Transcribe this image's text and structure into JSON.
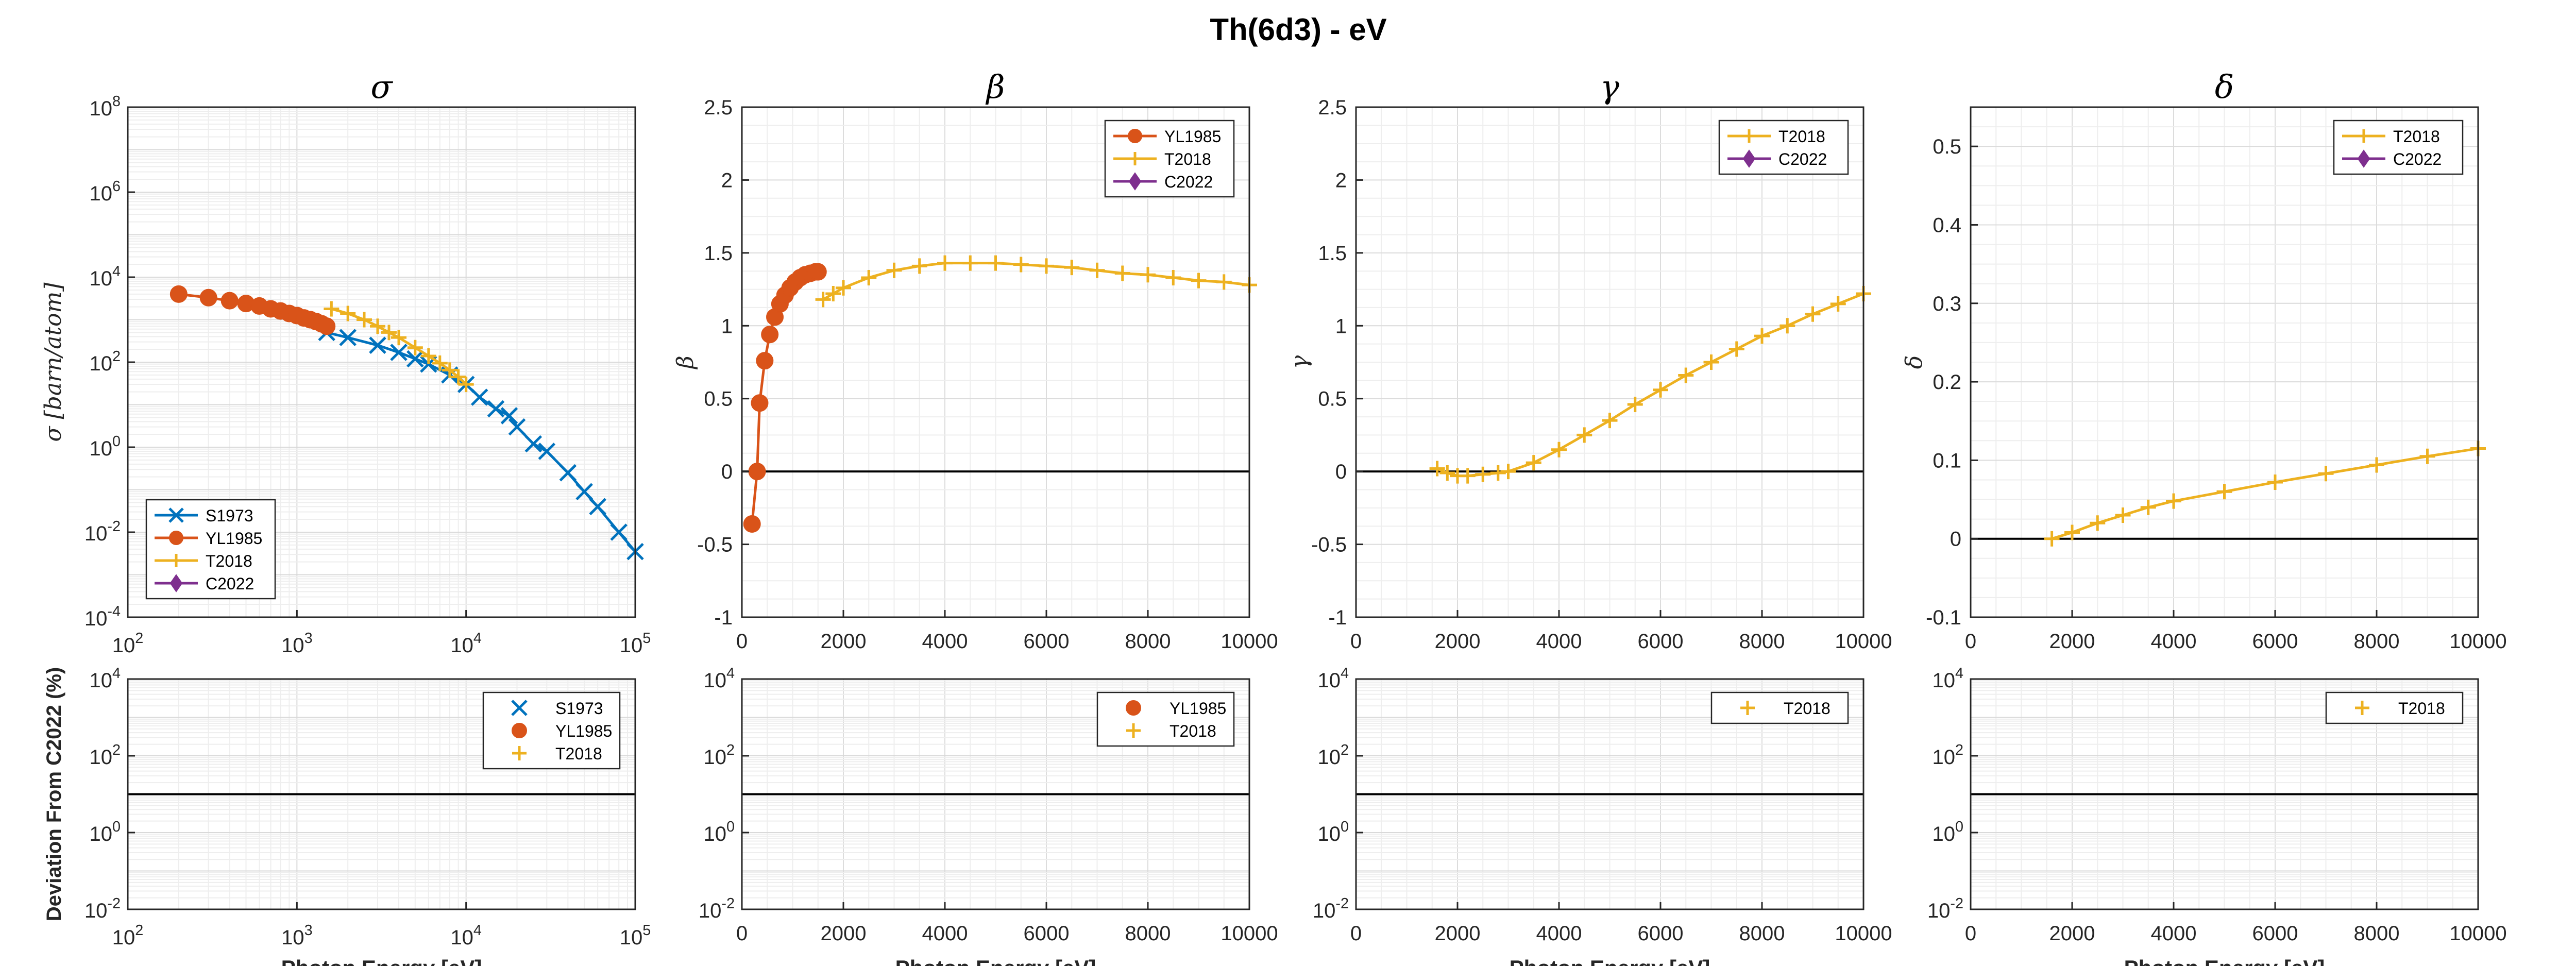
{
  "figure": {
    "title": "Th(6d3) -  eV",
    "xlabel": "Photon Energy [eV]",
    "dev_ylabel": "Deviation From C2022 (%)"
  },
  "colors": {
    "S1973": "#0072BD",
    "YL1985": "#D95319",
    "T2018": "#EDB120",
    "C2022": "#7E2F8E",
    "zero": "#000000",
    "grid": "#e6e6e6",
    "frame": "#262626"
  },
  "chart_data": [
    {
      "id": "sigma",
      "type": "line",
      "title": "σ",
      "ylabel": "σ [barn/atom]",
      "xscale": "log",
      "yscale": "log",
      "xlim": [
        100,
        100000
      ],
      "ylim": [
        0.0001,
        100000000
      ],
      "xticks": [
        100,
        1000,
        10000,
        100000
      ],
      "xticklabels": [
        [
          "10",
          "2"
        ],
        [
          "10",
          "3"
        ],
        [
          "10",
          "4"
        ],
        [
          "10",
          "5"
        ]
      ],
      "yticks": [
        0.0001,
        0.01,
        1,
        100,
        10000,
        1000000,
        100000000
      ],
      "yticklabels": [
        [
          "10",
          "-4"
        ],
        [
          "10",
          "-2"
        ],
        [
          "10",
          "0"
        ],
        [
          "10",
          "2"
        ],
        [
          "10",
          "4"
        ],
        [
          "10",
          "6"
        ],
        [
          "10",
          "8"
        ]
      ],
      "grid": true,
      "legend": "bottom-left",
      "legend_entries": [
        "S1973",
        "YL1985",
        "T2018",
        "C2022"
      ],
      "series": [
        {
          "name": "S1973",
          "marker": "x",
          "x": [
            1500,
            2000,
            3000,
            4000,
            5000,
            6000,
            8000,
            10000,
            12000,
            15000,
            18000,
            20000,
            25000,
            30000,
            40000,
            50000,
            60000,
            80000,
            100000
          ],
          "y": [
            500,
            380,
            250,
            170,
            120,
            90,
            50,
            30,
            15,
            8,
            5.5,
            3,
            1.2,
            0.8,
            0.25,
            0.09,
            0.04,
            0.01,
            0.0035
          ]
        },
        {
          "name": "YL1985",
          "marker": "o",
          "x": [
            200,
            300,
            400,
            500,
            600,
            700,
            800,
            900,
            1000,
            1100,
            1200,
            1300,
            1400,
            1500
          ],
          "y": [
            4000,
            3300,
            2800,
            2400,
            2100,
            1800,
            1600,
            1400,
            1250,
            1100,
            1000,
            900,
            800,
            700
          ]
        },
        {
          "name": "T2018",
          "marker": "+",
          "x": [
            1600,
            2000,
            2500,
            3000,
            3500,
            4000,
            5000,
            6000,
            7000,
            8000,
            9000,
            10000
          ],
          "y": [
            1800,
            1400,
            1000,
            700,
            500,
            380,
            220,
            140,
            95,
            65,
            45,
            30
          ]
        },
        {
          "name": "C2022",
          "marker": "d",
          "x": [],
          "y": []
        }
      ]
    },
    {
      "id": "beta",
      "type": "line",
      "title": "β",
      "ylabel": "β",
      "xscale": "linear",
      "yscale": "linear",
      "xlim": [
        0,
        10000
      ],
      "ylim": [
        -1,
        2.5
      ],
      "xticks": [
        0,
        2000,
        4000,
        6000,
        8000,
        10000
      ],
      "yticks": [
        -1,
        -0.5,
        0,
        0.5,
        1,
        1.5,
        2,
        2.5
      ],
      "zero_line": true,
      "grid": true,
      "legend": "top-right",
      "legend_entries": [
        "YL1985",
        "T2018",
        "C2022"
      ],
      "series": [
        {
          "name": "YL1985",
          "marker": "o",
          "x": [
            200,
            300,
            350,
            450,
            550,
            650,
            750,
            850,
            950,
            1050,
            1150,
            1250,
            1350,
            1450,
            1500
          ],
          "y": [
            -0.36,
            0.0,
            0.47,
            0.76,
            0.94,
            1.06,
            1.15,
            1.21,
            1.26,
            1.3,
            1.33,
            1.35,
            1.36,
            1.37,
            1.37
          ]
        },
        {
          "name": "T2018",
          "marker": "+",
          "x": [
            1600,
            1800,
            2000,
            2500,
            3000,
            3500,
            4000,
            4500,
            5000,
            5500,
            6000,
            6500,
            7000,
            7500,
            8000,
            8500,
            9000,
            9500,
            10000
          ],
          "y": [
            1.18,
            1.22,
            1.26,
            1.33,
            1.38,
            1.41,
            1.43,
            1.43,
            1.43,
            1.42,
            1.41,
            1.4,
            1.38,
            1.36,
            1.35,
            1.33,
            1.31,
            1.3,
            1.28
          ]
        },
        {
          "name": "C2022",
          "marker": "d",
          "x": [],
          "y": []
        }
      ]
    },
    {
      "id": "gamma",
      "type": "line",
      "title": "γ",
      "ylabel": "γ",
      "xscale": "linear",
      "yscale": "linear",
      "xlim": [
        0,
        10000
      ],
      "ylim": [
        -1,
        2.5
      ],
      "xticks": [
        0,
        2000,
        4000,
        6000,
        8000,
        10000
      ],
      "yticks": [
        -1,
        -0.5,
        0,
        0.5,
        1,
        1.5,
        2,
        2.5
      ],
      "zero_line": true,
      "grid": true,
      "legend": "top-right",
      "legend_entries": [
        "T2018",
        "C2022"
      ],
      "series": [
        {
          "name": "T2018",
          "marker": "+",
          "x": [
            1600,
            1800,
            2000,
            2200,
            2500,
            2800,
            3000,
            3500,
            4000,
            4500,
            5000,
            5500,
            6000,
            6500,
            7000,
            7500,
            8000,
            8500,
            9000,
            9500,
            10000
          ],
          "y": [
            0.02,
            -0.01,
            -0.03,
            -0.03,
            -0.02,
            -0.01,
            0.0,
            0.06,
            0.15,
            0.25,
            0.35,
            0.46,
            0.56,
            0.66,
            0.75,
            0.84,
            0.93,
            1.0,
            1.08,
            1.15,
            1.22
          ]
        },
        {
          "name": "C2022",
          "marker": "d",
          "x": [],
          "y": []
        }
      ]
    },
    {
      "id": "delta",
      "type": "line",
      "title": "δ",
      "ylabel": "δ",
      "xscale": "linear",
      "yscale": "linear",
      "xlim": [
        0,
        10000
      ],
      "ylim": [
        -0.1,
        0.55
      ],
      "xticks": [
        0,
        2000,
        4000,
        6000,
        8000,
        10000
      ],
      "yticks": [
        -0.1,
        0,
        0.1,
        0.2,
        0.3,
        0.4,
        0.5
      ],
      "zero_line": true,
      "grid": true,
      "legend": "top-right",
      "legend_entries": [
        "T2018",
        "C2022"
      ],
      "series": [
        {
          "name": "T2018",
          "marker": "+",
          "x": [
            1600,
            2000,
            2500,
            3000,
            3500,
            4000,
            5000,
            6000,
            7000,
            8000,
            9000,
            10000
          ],
          "y": [
            0.0,
            0.008,
            0.02,
            0.03,
            0.04,
            0.048,
            0.06,
            0.072,
            0.083,
            0.094,
            0.105,
            0.115
          ]
        },
        {
          "name": "C2022",
          "marker": "d",
          "x": [],
          "y": []
        }
      ]
    },
    {
      "id": "dev-sigma",
      "type": "scatter",
      "ylabel": "Deviation From C2022 (%)",
      "xlabel": "Photon Energy [eV]",
      "xscale": "log",
      "yscale": "log",
      "xlim": [
        100,
        100000
      ],
      "ylim": [
        0.01,
        10000
      ],
      "xticks": [
        100,
        1000,
        10000,
        100000
      ],
      "xticklabels": [
        [
          "10",
          "2"
        ],
        [
          "10",
          "3"
        ],
        [
          "10",
          "4"
        ],
        [
          "10",
          "5"
        ]
      ],
      "yticks": [
        0.01,
        1,
        100,
        10000
      ],
      "yticklabels": [
        [
          "10",
          "-2"
        ],
        [
          "10",
          "0"
        ],
        [
          "10",
          "2"
        ],
        [
          "10",
          "4"
        ]
      ],
      "ref_line": 10,
      "grid": true,
      "legend": "top-right",
      "legend_entries": [
        "S1973",
        "YL1985",
        "T2018"
      ],
      "series": [
        {
          "name": "S1973",
          "marker": "x",
          "x": [],
          "y": []
        },
        {
          "name": "YL1985",
          "marker": "o",
          "x": [],
          "y": []
        },
        {
          "name": "T2018",
          "marker": "+",
          "x": [],
          "y": []
        }
      ]
    },
    {
      "id": "dev-beta",
      "type": "scatter",
      "xlabel": "Photon Energy [eV]",
      "xscale": "linear",
      "yscale": "log",
      "xlim": [
        0,
        10000
      ],
      "ylim": [
        0.01,
        10000
      ],
      "xticks": [
        0,
        2000,
        4000,
        6000,
        8000,
        10000
      ],
      "yticks": [
        0.01,
        1,
        100,
        10000
      ],
      "yticklabels": [
        [
          "10",
          "-2"
        ],
        [
          "10",
          "0"
        ],
        [
          "10",
          "2"
        ],
        [
          "10",
          "4"
        ]
      ],
      "ref_line": 10,
      "grid": true,
      "legend": "top-right",
      "legend_entries": [
        "YL1985",
        "T2018"
      ],
      "series": [
        {
          "name": "YL1985",
          "marker": "o",
          "x": [],
          "y": []
        },
        {
          "name": "T2018",
          "marker": "+",
          "x": [],
          "y": []
        }
      ]
    },
    {
      "id": "dev-gamma",
      "type": "scatter",
      "xlabel": "Photon Energy [eV]",
      "xscale": "linear",
      "yscale": "log",
      "xlim": [
        0,
        10000
      ],
      "ylim": [
        0.01,
        10000
      ],
      "xticks": [
        0,
        2000,
        4000,
        6000,
        8000,
        10000
      ],
      "yticks": [
        0.01,
        1,
        100,
        10000
      ],
      "yticklabels": [
        [
          "10",
          "-2"
        ],
        [
          "10",
          "0"
        ],
        [
          "10",
          "2"
        ],
        [
          "10",
          "4"
        ]
      ],
      "ref_line": 10,
      "grid": true,
      "legend": "top-right",
      "legend_entries": [
        "T2018"
      ],
      "series": [
        {
          "name": "T2018",
          "marker": "+",
          "x": [],
          "y": []
        }
      ]
    },
    {
      "id": "dev-delta",
      "type": "scatter",
      "xlabel": "Photon Energy [eV]",
      "xscale": "linear",
      "yscale": "log",
      "xlim": [
        0,
        10000
      ],
      "ylim": [
        0.01,
        10000
      ],
      "xticks": [
        0,
        2000,
        4000,
        6000,
        8000,
        10000
      ],
      "yticks": [
        0.01,
        1,
        100,
        10000
      ],
      "yticklabels": [
        [
          "10",
          "-2"
        ],
        [
          "10",
          "0"
        ],
        [
          "10",
          "2"
        ],
        [
          "10",
          "4"
        ]
      ],
      "ref_line": 10,
      "grid": true,
      "legend": "top-right",
      "legend_entries": [
        "T2018"
      ],
      "series": [
        {
          "name": "T2018",
          "marker": "+",
          "x": [],
          "y": []
        }
      ]
    }
  ]
}
